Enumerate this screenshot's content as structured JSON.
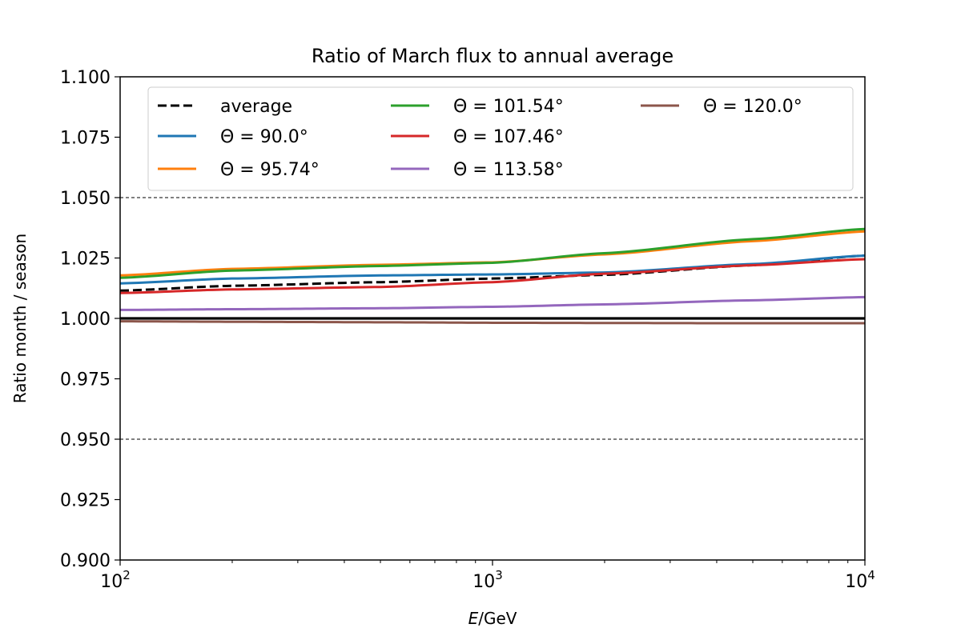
{
  "chart_data": {
    "type": "line",
    "title": "Ratio of March flux to annual average",
    "xlabel_italic": "E",
    "xlabel_rest": "/GeV",
    "ylabel": "Ratio month / season",
    "x_scale": "log",
    "xlim": [
      100,
      10000
    ],
    "ylim": [
      0.9,
      1.1
    ],
    "x_ticks": [
      {
        "value": 100,
        "base": "10",
        "exp": "2"
      },
      {
        "value": 1000,
        "base": "10",
        "exp": "3"
      },
      {
        "value": 10000,
        "base": "10",
        "exp": "4"
      }
    ],
    "y_ticks": [
      0.9,
      0.925,
      0.95,
      0.975,
      1.0,
      1.025,
      1.05,
      1.075,
      1.1
    ],
    "y_tick_labels": [
      "0.900",
      "0.925",
      "0.950",
      "0.975",
      "1.000",
      "1.025",
      "1.050",
      "1.075",
      "1.100"
    ],
    "reference_lines": [
      {
        "y": 1.05,
        "style": "dashed",
        "color": "#000000"
      },
      {
        "y": 0.95,
        "style": "dashed",
        "color": "#000000"
      },
      {
        "y": 1.0,
        "style": "solid",
        "color": "#000000"
      }
    ],
    "legend_position": "top",
    "series": [
      {
        "name": "average",
        "color": "#000000",
        "dashed": true,
        "x": [
          100,
          200,
          500,
          1000,
          2000,
          5000,
          10000
        ],
        "y": [
          1.0115,
          1.0135,
          1.015,
          1.0165,
          1.018,
          1.022,
          1.026
        ]
      },
      {
        "name": "Θ =  90.0°",
        "color": "#1f77b4",
        "dashed": false,
        "x": [
          100,
          200,
          500,
          1000,
          2000,
          5000,
          10000
        ],
        "y": [
          1.0145,
          1.0165,
          1.0178,
          1.0182,
          1.019,
          1.0225,
          1.026
        ]
      },
      {
        "name": "Θ =  95.74°",
        "color": "#ff7f0e",
        "dashed": false,
        "x": [
          100,
          200,
          500,
          1000,
          2000,
          5000,
          10000
        ],
        "y": [
          1.0178,
          1.0205,
          1.0222,
          1.0232,
          1.0265,
          1.032,
          1.036
        ]
      },
      {
        "name": "Θ =  101.54°",
        "color": "#2ca02c",
        "dashed": false,
        "x": [
          100,
          200,
          500,
          1000,
          2000,
          5000,
          10000
        ],
        "y": [
          1.0168,
          1.0198,
          1.0217,
          1.023,
          1.027,
          1.0328,
          1.037
        ]
      },
      {
        "name": "Θ =  107.46°",
        "color": "#d62728",
        "dashed": false,
        "x": [
          100,
          200,
          500,
          1000,
          2000,
          5000,
          10000
        ],
        "y": [
          1.0105,
          1.012,
          1.013,
          1.015,
          1.0185,
          1.022,
          1.0245
        ]
      },
      {
        "name": "Θ =  113.58°",
        "color": "#9467bd",
        "dashed": false,
        "x": [
          100,
          200,
          500,
          1000,
          2000,
          5000,
          10000
        ],
        "y": [
          1.0035,
          1.0038,
          1.0042,
          1.0048,
          1.0058,
          1.0075,
          1.0088
        ]
      },
      {
        "name": "Θ =  120.0°",
        "color": "#8c564b",
        "dashed": false,
        "x": [
          100,
          200,
          500,
          1000,
          2000,
          5000,
          10000
        ],
        "y": [
          0.9988,
          0.9986,
          0.9984,
          0.9982,
          0.9981,
          0.998,
          0.998
        ]
      }
    ]
  }
}
